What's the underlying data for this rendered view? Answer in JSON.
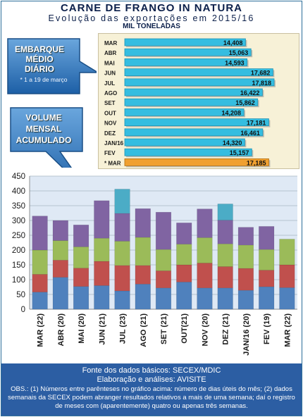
{
  "header": {
    "title": "CARNE DE FRANGO IN NATURA",
    "subtitle": "Evolução das exportações em 2015/16",
    "units": "MIL TONELADAS"
  },
  "callouts": {
    "daily": {
      "line1": "EMBARQUE",
      "line2": "MÉDIO",
      "line3": "DIÁRIO",
      "note": "* 1 a 19 de março"
    },
    "monthly": {
      "line1": "VOLUME",
      "line2": "MENSAL",
      "line3": "ACUMULADO"
    }
  },
  "colors": {
    "bar": "#35bde0",
    "highlight": "#f0a030",
    "seg1": "#4f81bd",
    "seg2": "#c0504d",
    "seg3": "#9bbb59",
    "seg4": "#8064a2",
    "seg5": "#4bacc6",
    "plot_bg": "#dfe9f5"
  },
  "chart_data": [
    {
      "type": "bar",
      "orientation": "horizontal",
      "categories": [
        "MAR",
        "ABR",
        "MAI",
        "JUN",
        "JUL",
        "AGO",
        "SET",
        "OUT",
        "NOV",
        "DEZ",
        "JAN/16",
        "FEV",
        "* MAR"
      ],
      "values": [
        14408,
        15063,
        14593,
        17682,
        17818,
        16422,
        15862,
        14208,
        17181,
        16461,
        14320,
        15157,
        17185
      ],
      "value_labels": [
        "14,408",
        "15,063",
        "14,593",
        "17,682",
        "17,818",
        "16,422",
        "15,862",
        "14,208",
        "17,181",
        "16,461",
        "14,320",
        "15,157",
        "17,185"
      ],
      "highlight_index": 12
    },
    {
      "type": "bar",
      "stacked": true,
      "categories": [
        "MAR (22)",
        "ABR (20)",
        "MAI (20)",
        "JUN (21)",
        "JUL (23)",
        "AGO (21)",
        "SET (21)",
        "OUT(21)",
        "NOV (20)",
        "DEZ (21)",
        "JAN/16 (20)",
        "FEV (19)",
        "MAR (22)"
      ],
      "series": [
        {
          "values": [
            58,
            108,
            77,
            80,
            62,
            85,
            72,
            92,
            72,
            72,
            64,
            76,
            73
          ]
        },
        {
          "values": [
            60,
            58,
            62,
            82,
            86,
            63,
            58,
            58,
            84,
            72,
            74,
            56,
            77
          ]
        },
        {
          "values": [
            82,
            66,
            72,
            78,
            82,
            95,
            72,
            70,
            86,
            77,
            79,
            70,
            87
          ]
        },
        {
          "values": [
            115,
            68,
            74,
            127,
            94,
            97,
            126,
            72,
            97,
            80,
            60,
            78,
            0
          ]
        },
        {
          "values": [
            0,
            0,
            0,
            0,
            82,
            0,
            0,
            0,
            0,
            55,
            0,
            0,
            0
          ]
        }
      ],
      "ylim": [
        0,
        450
      ],
      "yticks": [
        0,
        50,
        100,
        150,
        200,
        250,
        300,
        350,
        400,
        450
      ],
      "grid": true
    }
  ],
  "footer": {
    "source": "Fonte dos dados básicos: SECEX/MDIC",
    "analysis": "Elaboração e análises: AVISITE",
    "obs": "OBS.: (1) Números entre parênteses no gráfico acima: número de dias úteis do mês; (2) dados semanais da SECEX podem abranger resultados relativos a mais de uma semana; daí o registro de meses com (aparentemente) quatro ou apenas três semanas."
  }
}
